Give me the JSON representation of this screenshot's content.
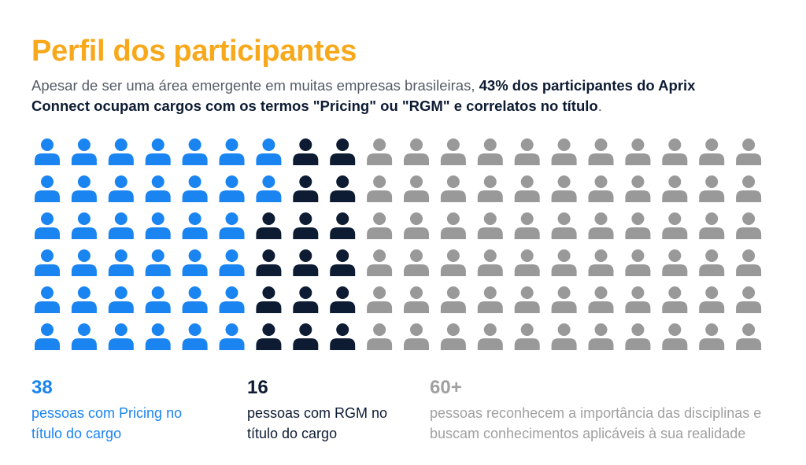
{
  "title": "Perfil dos participantes",
  "subtitle": {
    "part1": "Apesar de ser uma área emergente em muitas empresas brasileiras, ",
    "bold": "43% dos participantes do Aprix Connect ocupam cargos com os termos \"Pricing\" ou \"RGM\" e correlatos no título",
    "part2": "."
  },
  "chart_data": {
    "type": "pictogram",
    "rows": 6,
    "columns": 20,
    "icon": "person-icon",
    "series": [
      {
        "label": "pessoas com Pricing no título do cargo",
        "color": "#1a84f0",
        "counts_per_row": [
          7,
          7,
          6,
          6,
          6,
          6
        ]
      },
      {
        "label": "pessoas com RGM no título do cargo",
        "color": "#0d1b33",
        "counts_per_row": [
          2,
          2,
          3,
          3,
          3,
          3
        ]
      },
      {
        "label": "pessoas reconhecem a importância das disciplinas e buscam conhecimentos aplicáveis à sua realidade",
        "color": "#999999",
        "counts_per_row": [
          11,
          11,
          11,
          11,
          11,
          11
        ]
      }
    ]
  },
  "stats": {
    "pricing": {
      "value": "38",
      "desc": "pessoas com Pricing no título do cargo"
    },
    "rgm": {
      "value": "16",
      "desc": "pessoas com RGM no título do cargo"
    },
    "other": {
      "value": "60+",
      "desc": "pessoas reconhecem a importância das disciplinas e buscam conhecimentos aplicáveis à sua realidade"
    }
  }
}
